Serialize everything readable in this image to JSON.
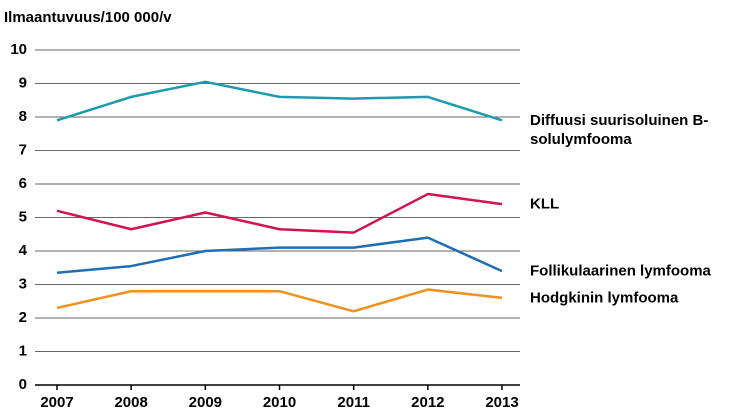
{
  "chart_data": {
    "type": "line",
    "title": "Ilmaantuvuus/100 000/v",
    "categories": [
      "2007",
      "2008",
      "2009",
      "2010",
      "2011",
      "2012",
      "2013"
    ],
    "series": [
      {
        "name": "Diffuusi suurisoluinen B-solulymfooma",
        "color": "#1a9bb0",
        "values": [
          7.9,
          8.6,
          9.05,
          8.6,
          8.55,
          8.6,
          7.9
        ]
      },
      {
        "name": "KLL",
        "color": "#d0144f",
        "values": [
          5.2,
          4.65,
          5.15,
          4.65,
          4.55,
          5.7,
          5.4
        ]
      },
      {
        "name": "Follikulaarinen lymfooma",
        "color": "#1f6db3",
        "values": [
          3.35,
          3.55,
          4.0,
          4.1,
          4.1,
          4.4,
          3.4
        ]
      },
      {
        "name": "Hodgkinin lymfooma",
        "color": "#f0901e",
        "values": [
          2.3,
          2.8,
          2.8,
          2.8,
          2.2,
          2.85,
          2.6
        ]
      }
    ],
    "ylim": [
      0,
      10
    ],
    "yticks": [
      0,
      1,
      2,
      3,
      4,
      5,
      6,
      7,
      8,
      9,
      10
    ],
    "grid": true
  }
}
